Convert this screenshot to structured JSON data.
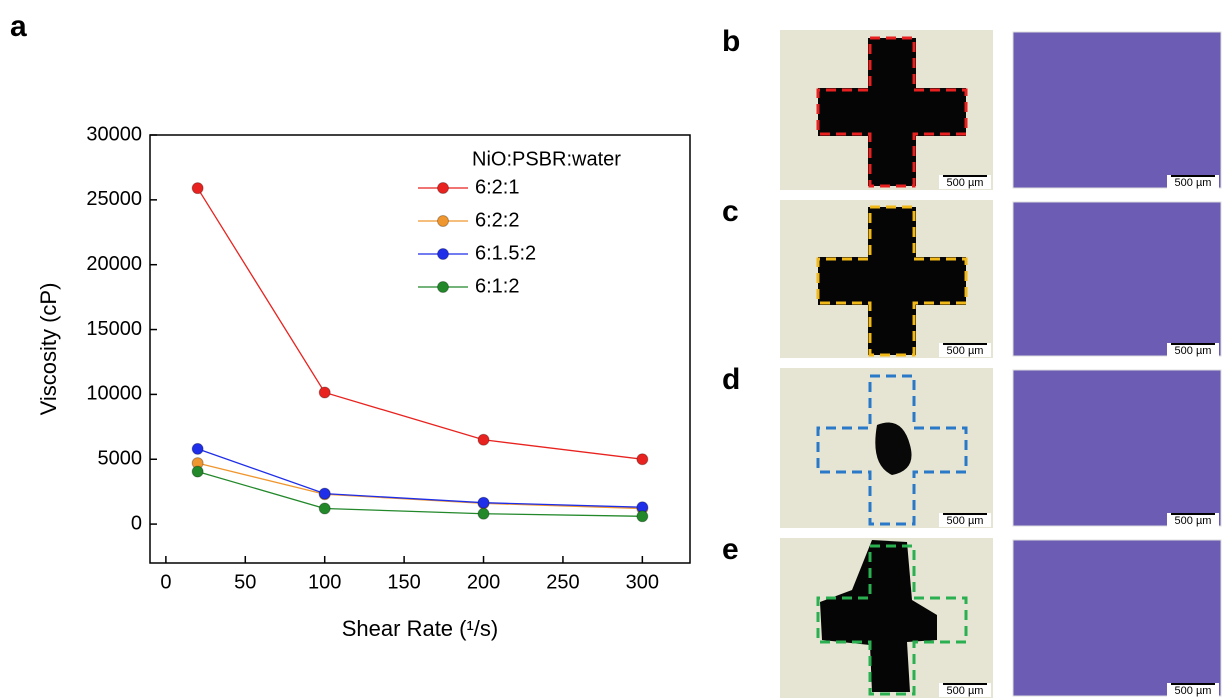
{
  "panel_label": "a",
  "chart_data": {
    "type": "line",
    "x_label": "Shear Rate (¹/s)",
    "y_label": "Viscosity (cP)",
    "legend_title": "NiO:PSBR:water",
    "x": [
      20,
      100,
      200,
      300
    ],
    "series": [
      {
        "name": "6:2:1",
        "color": "#e8231f",
        "values": [
          25900,
          10150,
          6500,
          5000
        ]
      },
      {
        "name": "6:2:2",
        "color": "#f0962e",
        "values": [
          4700,
          2300,
          1600,
          1200
        ]
      },
      {
        "name": "6:1.5:2",
        "color": "#1f2ee8",
        "values": [
          5800,
          2350,
          1650,
          1300
        ]
      },
      {
        "name": "6:1:2",
        "color": "#22882a",
        "values": [
          4050,
          1200,
          800,
          600
        ]
      }
    ],
    "xlim": [
      -10,
      330
    ],
    "xticks": [
      0,
      50,
      100,
      150,
      200,
      250,
      300
    ],
    "ylim": [
      -3000,
      30000
    ],
    "yticks": [
      0,
      5000,
      10000,
      15000,
      20000,
      25000,
      30000
    ],
    "legend": "upper right"
  },
  "panels": [
    {
      "label": "b",
      "scale_bars": [
        "500 µm",
        "500 µm"
      ]
    },
    {
      "label": "c",
      "scale_bars": [
        "500 µm",
        "500 µm"
      ]
    },
    {
      "label": "d",
      "scale_bars": [
        "500 µm",
        "500 µm"
      ]
    },
    {
      "label": "e",
      "scale_bars": [
        "500 µm",
        "500 µm"
      ]
    }
  ]
}
